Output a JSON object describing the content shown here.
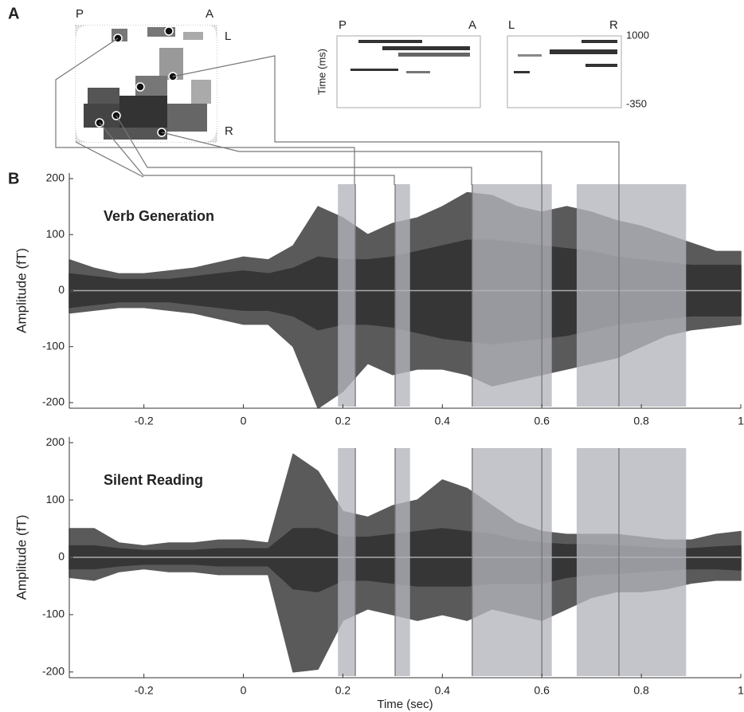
{
  "labels": {
    "panel_a": "A",
    "panel_b": "B",
    "map_p": "P",
    "map_a": "A",
    "map_l": "L",
    "map_r": "R",
    "raster1_left": "P",
    "raster1_right": "A",
    "raster2_left": "L",
    "raster2_right": "R"
  },
  "raster": {
    "ylabel": "Time (ms)",
    "yticks": [
      1000,
      -350
    ]
  },
  "chart_data": [
    {
      "type": "area",
      "title": "Verb Generation",
      "ylabel": "Amplitude (fT)",
      "x": [
        -0.35,
        -0.3,
        -0.25,
        -0.2,
        -0.15,
        -0.1,
        -0.05,
        0,
        0.05,
        0.1,
        0.15,
        0.2,
        0.25,
        0.3,
        0.35,
        0.4,
        0.45,
        0.5,
        0.55,
        0.6,
        0.65,
        0.7,
        0.75,
        0.8,
        0.85,
        0.9,
        0.95,
        1.0
      ],
      "series": [
        {
          "color": "#5a5a5a",
          "values": [
            55,
            40,
            30,
            30,
            35,
            40,
            50,
            60,
            55,
            80,
            150,
            130,
            100,
            120,
            130,
            150,
            175,
            170,
            150,
            140,
            150,
            140,
            125,
            115,
            100,
            85,
            70,
            70
          ]
        },
        {
          "color": "#5a5a5a",
          "values": [
            -40,
            -35,
            -30,
            -30,
            -35,
            -40,
            -50,
            -60,
            -60,
            -100,
            -210,
            -180,
            -130,
            -150,
            -140,
            -140,
            -150,
            -170,
            -160,
            -150,
            -140,
            -130,
            -120,
            -100,
            -80,
            -70,
            -65,
            -60
          ]
        },
        {
          "color": "#363636",
          "values": [
            30,
            25,
            20,
            20,
            20,
            25,
            30,
            35,
            30,
            40,
            60,
            55,
            55,
            60,
            70,
            80,
            90,
            90,
            85,
            80,
            75,
            70,
            60,
            55,
            50,
            45,
            45,
            45
          ]
        },
        {
          "color": "#363636",
          "values": [
            -30,
            -25,
            -20,
            -20,
            -20,
            -25,
            -30,
            -35,
            -35,
            -45,
            -70,
            -60,
            -60,
            -65,
            -75,
            -85,
            -90,
            -95,
            -90,
            -85,
            -80,
            -70,
            -60,
            -55,
            -50,
            -45,
            -45,
            -45
          ]
        }
      ],
      "xlim": [
        -0.35,
        1
      ],
      "xticks": [
        -0.2,
        0,
        0.2,
        0.4,
        0.6,
        0.8,
        1
      ],
      "ylim": [
        -210,
        210
      ],
      "yticks": [
        -200,
        -100,
        0,
        100,
        200
      ],
      "shaded_ranges": [
        [
          0.19,
          0.225
        ],
        [
          0.305,
          0.335
        ],
        [
          0.46,
          0.62
        ],
        [
          0.67,
          0.89
        ]
      ],
      "marker_lines": [
        0.225,
        0.305,
        0.46,
        0.6,
        0.755
      ]
    },
    {
      "type": "area",
      "title": "Silent Reading",
      "ylabel": "Amplitude (fT)",
      "xlabel": "Time (sec)",
      "x": [
        -0.35,
        -0.3,
        -0.25,
        -0.2,
        -0.15,
        -0.1,
        -0.05,
        0,
        0.05,
        0.1,
        0.15,
        0.2,
        0.25,
        0.3,
        0.35,
        0.4,
        0.45,
        0.5,
        0.55,
        0.6,
        0.65,
        0.7,
        0.75,
        0.8,
        0.85,
        0.9,
        0.95,
        1.0
      ],
      "series": [
        {
          "color": "#5a5a5a",
          "values": [
            50,
            50,
            25,
            20,
            25,
            25,
            30,
            30,
            25,
            180,
            150,
            80,
            70,
            90,
            100,
            135,
            120,
            90,
            60,
            45,
            40,
            40,
            40,
            35,
            30,
            30,
            40,
            45
          ]
        },
        {
          "color": "#5a5a5a",
          "values": [
            -35,
            -40,
            -25,
            -20,
            -25,
            -25,
            -30,
            -30,
            -30,
            -200,
            -195,
            -110,
            -90,
            -100,
            -110,
            -100,
            -110,
            -90,
            -100,
            -110,
            -90,
            -70,
            -60,
            -60,
            -55,
            -45,
            -40,
            -40
          ]
        },
        {
          "color": "#363636",
          "values": [
            20,
            20,
            15,
            12,
            12,
            12,
            15,
            15,
            15,
            50,
            50,
            35,
            35,
            40,
            45,
            50,
            45,
            40,
            30,
            25,
            22,
            22,
            20,
            18,
            15,
            15,
            18,
            20
          ]
        },
        {
          "color": "#363636",
          "values": [
            -20,
            -20,
            -15,
            -12,
            -12,
            -12,
            -15,
            -15,
            -15,
            -55,
            -60,
            -40,
            -40,
            -45,
            -50,
            -50,
            -50,
            -45,
            -45,
            -45,
            -35,
            -30,
            -28,
            -25,
            -22,
            -20,
            -20,
            -22
          ]
        }
      ],
      "xlim": [
        -0.35,
        1
      ],
      "xticks": [
        -0.2,
        0,
        0.2,
        0.4,
        0.6,
        0.8,
        1
      ],
      "ylim": [
        -210,
        210
      ],
      "yticks": [
        -200,
        -100,
        0,
        100,
        200
      ],
      "shaded_ranges": [
        [
          0.19,
          0.225
        ],
        [
          0.305,
          0.335
        ],
        [
          0.46,
          0.62
        ],
        [
          0.67,
          0.89
        ]
      ],
      "marker_lines": [
        0.225,
        0.305,
        0.46,
        0.6,
        0.755
      ]
    }
  ]
}
